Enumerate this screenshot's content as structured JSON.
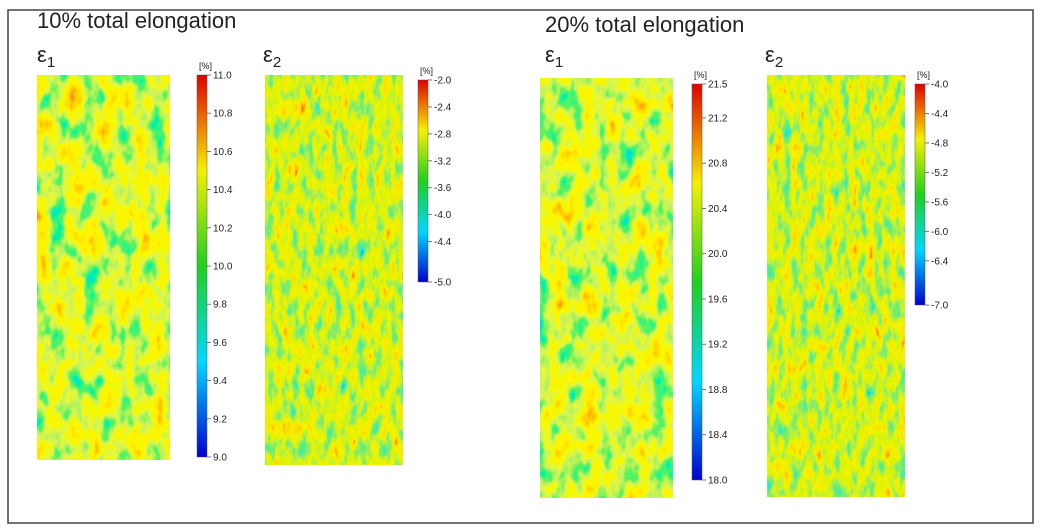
{
  "panels": [
    {
      "title": "10% total elongation",
      "maps": [
        {
          "label": "ε",
          "subscript": "1",
          "unit": "[%]",
          "ticks": [
            "11.0",
            "10.8",
            "10.6",
            "10.4",
            "10.2",
            "10.0",
            "9.8",
            "9.6",
            "9.4",
            "9.2",
            "9.0"
          ]
        },
        {
          "label": "ε",
          "subscript": "2",
          "unit": "[%]",
          "ticks": [
            "-2.0",
            "-2.4",
            "-2.8",
            "-3.2",
            "-3.6",
            "-4.0",
            "-4.4",
            "-5.0"
          ]
        }
      ]
    },
    {
      "title": "20% total elongation",
      "maps": [
        {
          "label": "ε",
          "subscript": "1",
          "unit": "[%]",
          "ticks": [
            "21.5",
            "21.2",
            "20.8",
            "20.4",
            "20.0",
            "19.6",
            "19.2",
            "18.8",
            "18.4",
            "18.0"
          ]
        },
        {
          "label": "ε",
          "subscript": "2",
          "unit": "[%]",
          "ticks": [
            "-4.0",
            "-4.4",
            "-4.8",
            "-5.2",
            "-5.6",
            "-6.0",
            "-6.4",
            "-7.0"
          ]
        }
      ]
    }
  ]
}
